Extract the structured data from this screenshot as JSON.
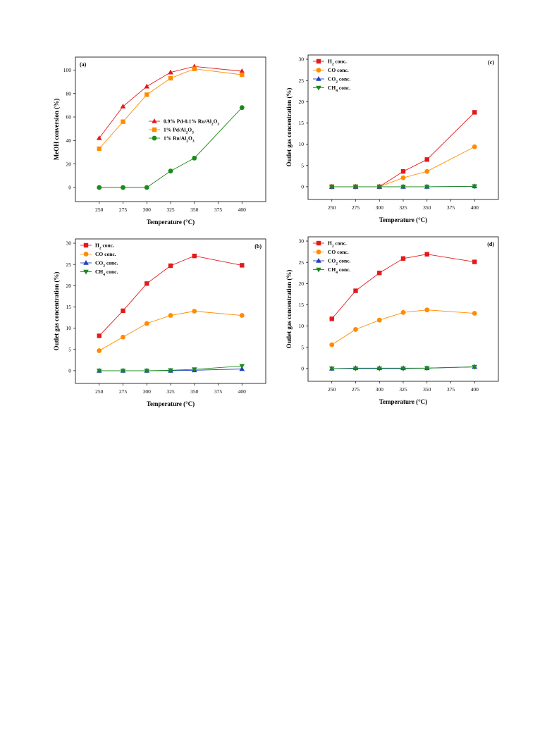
{
  "chart_data": [
    {
      "id": "a",
      "type": "line",
      "panel_label": "(a)",
      "xlabel": "Temperature (°C)",
      "ylabel": "MeOH conversion (%)",
      "xlim": [
        225,
        425
      ],
      "ylim": [
        -12,
        111
      ],
      "xticks": [
        250,
        275,
        300,
        325,
        350,
        375,
        400
      ],
      "yticks": [
        0,
        20,
        40,
        60,
        80,
        100
      ],
      "legend_position": "center",
      "series": [
        {
          "name": "0.9% Pd-0.1% Ru/Al2O3",
          "marker": "triangle-up",
          "color": "#e31a1c",
          "x": [
            250,
            275,
            300,
            325,
            350,
            400
          ],
          "y": [
            42,
            69,
            86,
            98,
            103,
            99
          ]
        },
        {
          "name": "1% Pd/Al2O3",
          "marker": "square",
          "color": "#ff8c00",
          "x": [
            250,
            275,
            300,
            325,
            350,
            400
          ],
          "y": [
            33,
            56,
            79,
            93,
            101,
            96
          ]
        },
        {
          "name": "1% Ru/Al2O3",
          "marker": "circle",
          "color": "#1a8a1a",
          "x": [
            250,
            275,
            300,
            325,
            350,
            400
          ],
          "y": [
            0,
            0,
            0,
            14,
            25,
            68
          ]
        }
      ]
    },
    {
      "id": "c",
      "type": "line",
      "panel_label": "(c)",
      "xlabel": "Temperature (°C)",
      "ylabel": "Outlet gas concentration (%)",
      "xlim": [
        225,
        425
      ],
      "ylim": [
        -3,
        31
      ],
      "xticks": [
        250,
        275,
        300,
        325,
        350,
        375,
        400
      ],
      "yticks": [
        0,
        5,
        10,
        15,
        20,
        25,
        30
      ],
      "legend_position": "top-left",
      "series": [
        {
          "name": "H2 conc.",
          "marker": "square",
          "color": "#e31a1c",
          "x": [
            250,
            275,
            300,
            325,
            350,
            400
          ],
          "y": [
            0,
            0,
            0,
            3.6,
            6.4,
            17.5
          ]
        },
        {
          "name": "CO conc.",
          "marker": "circle",
          "color": "#ff8c00",
          "x": [
            250,
            275,
            300,
            325,
            350,
            400
          ],
          "y": [
            0,
            0,
            0,
            2.1,
            3.6,
            9.4
          ]
        },
        {
          "name": "CO2 conc.",
          "marker": "triangle-up",
          "color": "#1f3fbf",
          "x": [
            250,
            275,
            300,
            325,
            350,
            400
          ],
          "y": [
            0,
            0,
            0,
            0,
            0,
            0.1
          ]
        },
        {
          "name": "CH4 conc.",
          "marker": "triangle-down",
          "color": "#1a8a1a",
          "x": [
            250,
            275,
            300,
            325,
            350,
            400
          ],
          "y": [
            0,
            0,
            0,
            0,
            0,
            0.1
          ]
        }
      ]
    },
    {
      "id": "b",
      "type": "line",
      "panel_label": "(b)",
      "xlabel": "Temperature (°C)",
      "ylabel": "Outlet gas concentration (%)",
      "xlim": [
        225,
        425
      ],
      "ylim": [
        -3,
        31
      ],
      "xticks": [
        250,
        275,
        300,
        325,
        350,
        375,
        400
      ],
      "yticks": [
        0,
        5,
        10,
        15,
        20,
        25,
        30
      ],
      "legend_position": "top-left",
      "series": [
        {
          "name": "H2 conc.",
          "marker": "square",
          "color": "#e31a1c",
          "x": [
            250,
            275,
            300,
            325,
            350,
            400
          ],
          "y": [
            8.2,
            14.1,
            20.5,
            24.7,
            27.0,
            24.8
          ]
        },
        {
          "name": "CO conc.",
          "marker": "circle",
          "color": "#ff8c00",
          "x": [
            250,
            275,
            300,
            325,
            350,
            400
          ],
          "y": [
            4.7,
            7.9,
            11.1,
            13.0,
            14.0,
            13.0
          ]
        },
        {
          "name": "CO2 conc.",
          "marker": "triangle-up",
          "color": "#1f3fbf",
          "x": [
            250,
            275,
            300,
            325,
            350,
            400
          ],
          "y": [
            0,
            0,
            0,
            0,
            0.1,
            0.4
          ]
        },
        {
          "name": "CH4 conc.",
          "marker": "triangle-down",
          "color": "#1a8a1a",
          "x": [
            250,
            275,
            300,
            325,
            350,
            400
          ],
          "y": [
            0,
            0,
            0,
            0.1,
            0.3,
            1.1
          ]
        }
      ]
    },
    {
      "id": "d",
      "type": "line",
      "panel_label": "(d)",
      "xlabel": "Temperature (°C)",
      "ylabel": "Outlet gas concentration (%)",
      "xlim": [
        225,
        425
      ],
      "ylim": [
        -3,
        31
      ],
      "xticks": [
        250,
        275,
        300,
        325,
        350,
        375,
        400
      ],
      "yticks": [
        0,
        5,
        10,
        15,
        20,
        25,
        30
      ],
      "legend_position": "top-left",
      "series": [
        {
          "name": "H2 conc.",
          "marker": "square",
          "color": "#e31a1c",
          "x": [
            250,
            275,
            300,
            325,
            350,
            400
          ],
          "y": [
            11.7,
            18.3,
            22.5,
            25.9,
            26.9,
            25.1
          ]
        },
        {
          "name": "CO conc.",
          "marker": "circle",
          "color": "#ff8c00",
          "x": [
            250,
            275,
            300,
            325,
            350,
            400
          ],
          "y": [
            5.6,
            9.2,
            11.4,
            13.2,
            13.8,
            13.0
          ]
        },
        {
          "name": "CO2 conc.",
          "marker": "triangle-up",
          "color": "#1f3fbf",
          "x": [
            250,
            275,
            300,
            325,
            350,
            400
          ],
          "y": [
            0,
            0.1,
            0.1,
            0.1,
            0.1,
            0.4
          ]
        },
        {
          "name": "CH4 conc.",
          "marker": "triangle-down",
          "color": "#1a8a1a",
          "x": [
            250,
            275,
            300,
            325,
            350,
            400
          ],
          "y": [
            0,
            0,
            0,
            0,
            0.1,
            0.4
          ]
        }
      ]
    }
  ]
}
